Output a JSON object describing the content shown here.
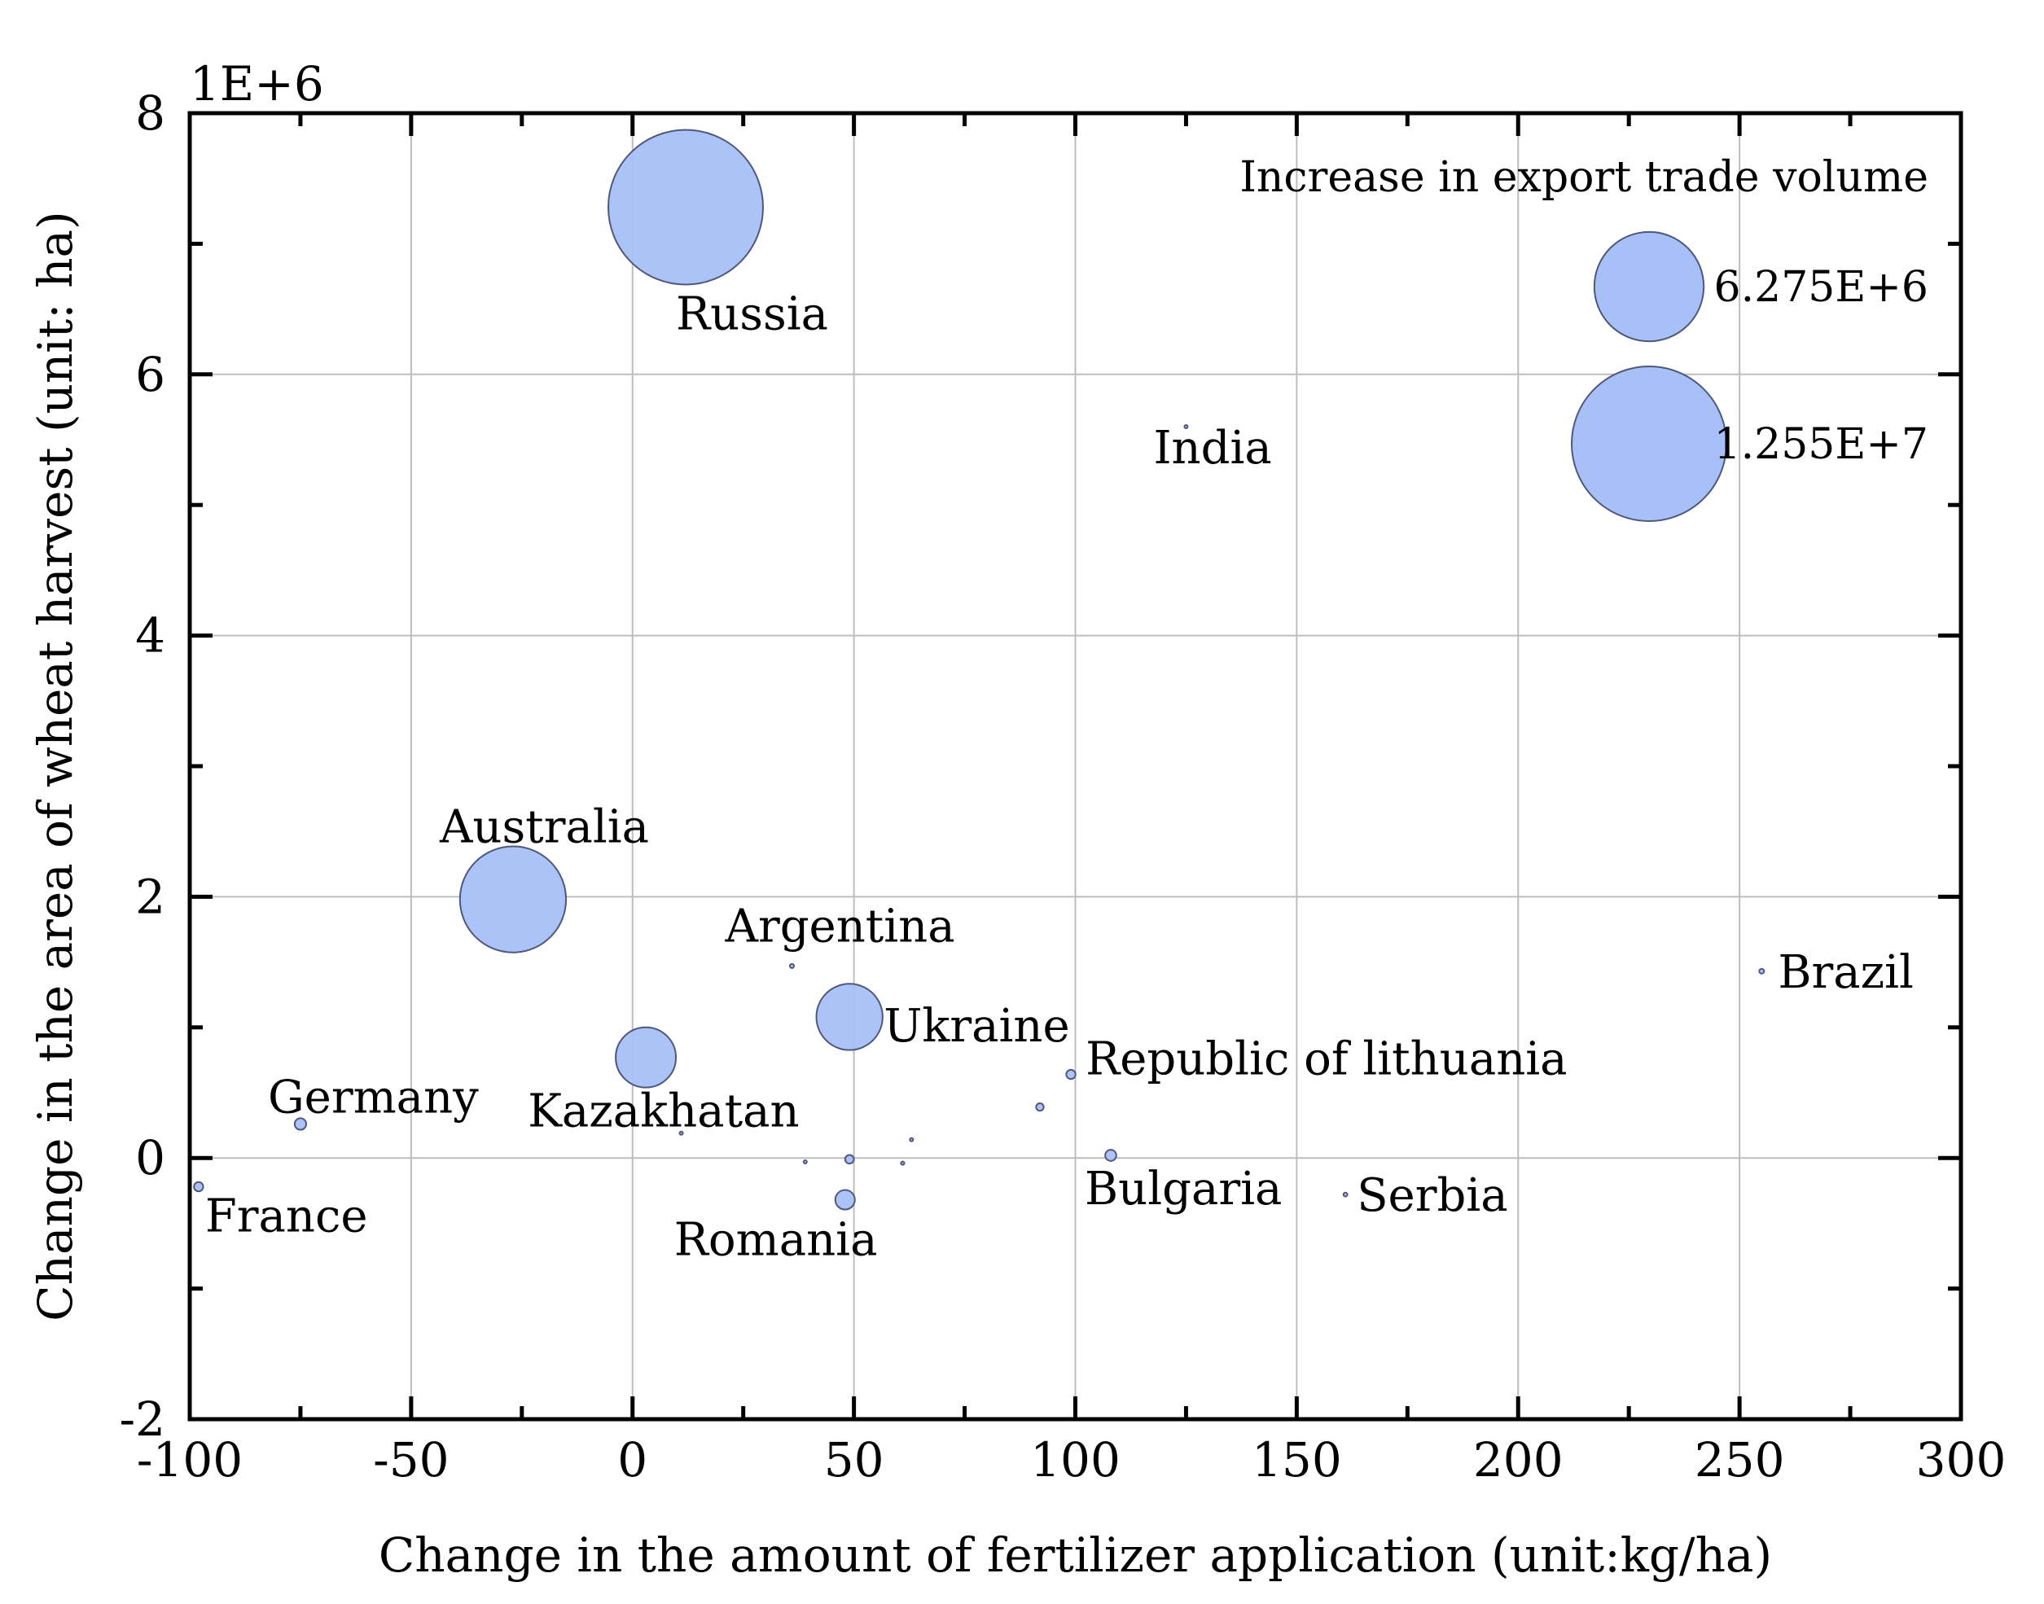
{
  "chart_data": {
    "type": "scatter",
    "subtype": "bubble",
    "xlabel": "Change in the amount of fertilizer application (unit:kg/ha)",
    "ylabel": "Change in the area of wheat harvest (unit: ha)",
    "y_multiplier_label": "1E+6",
    "xlim": [
      -100,
      300
    ],
    "ylim": [
      -2,
      8
    ],
    "x_ticks": [
      -100,
      -50,
      0,
      50,
      100,
      150,
      200,
      250,
      300
    ],
    "x_tick_labels": [
      "-100",
      "-50",
      "0",
      "50",
      "100",
      "150",
      "200",
      "250",
      "300"
    ],
    "y_ticks": [
      -2,
      0,
      2,
      4,
      6,
      8
    ],
    "y_tick_labels": [
      "-2",
      "0",
      "2",
      "4",
      "6",
      "8"
    ],
    "grid": true,
    "bubble_color": "#a8c0f8",
    "bubble_stroke": "#50587a",
    "size_reference": {
      "value": 12550000,
      "radius_scale": 1.0
    },
    "legend": {
      "title": "Increase in export trade volume",
      "position": "top-right",
      "entries": [
        {
          "label": "6.275E+6",
          "value": 6275000
        },
        {
          "label": "1.255E+7",
          "value": 12550000
        }
      ]
    },
    "points": [
      {
        "name": "Russia",
        "x": 12,
        "y": 7.28,
        "size": 12550000,
        "label": "Russia"
      },
      {
        "name": "Australia",
        "x": -27,
        "y": 1.98,
        "size": 5900000,
        "label": "Australia"
      },
      {
        "name": "Ukraine",
        "x": 49,
        "y": 1.08,
        "size": 2300000,
        "label": "Ukraine"
      },
      {
        "name": "Kazakhatan",
        "x": 3,
        "y": 0.77,
        "size": 1900000,
        "label": "Kazakhatan"
      },
      {
        "name": "Argentina",
        "x": 36,
        "y": 1.47,
        "size": 9000,
        "label": "Argentina"
      },
      {
        "name": "India",
        "x": 125,
        "y": 5.6,
        "size": 3000,
        "label": "India"
      },
      {
        "name": "Brazil",
        "x": 255,
        "y": 1.43,
        "size": 12000,
        "label": "Brazil"
      },
      {
        "name": "Republic of lithuania",
        "x": 99,
        "y": 0.64,
        "size": 45000,
        "label": "Republic of lithuania"
      },
      {
        "name": "Germany",
        "x": -75,
        "y": 0.26,
        "size": 70000,
        "label": "Germany"
      },
      {
        "name": "France",
        "x": -98,
        "y": -0.22,
        "size": 45000,
        "label": "France"
      },
      {
        "name": "Romania",
        "x": 48,
        "y": -0.32,
        "size": 200000,
        "label": "Romania"
      },
      {
        "name": "Bulgaria",
        "x": 108,
        "y": 0.02,
        "size": 65000,
        "label": "Bulgaria"
      },
      {
        "name": "Serbia",
        "x": 161,
        "y": -0.28,
        "size": 8000,
        "label": "Serbia"
      },
      {
        "name": "unlabeled-1",
        "x": 49,
        "y": -0.01,
        "size": 40000
      },
      {
        "name": "unlabeled-2",
        "x": 92,
        "y": 0.39,
        "size": 30000
      },
      {
        "name": "unlabeled-3",
        "x": 61,
        "y": -0.04,
        "size": 6000
      },
      {
        "name": "unlabeled-4",
        "x": 39,
        "y": -0.03,
        "size": 5000
      },
      {
        "name": "unlabeled-5",
        "x": 63,
        "y": 0.14,
        "size": 4000
      },
      {
        "name": "unlabeled-6",
        "x": 11,
        "y": 0.19,
        "size": 4000
      }
    ]
  }
}
